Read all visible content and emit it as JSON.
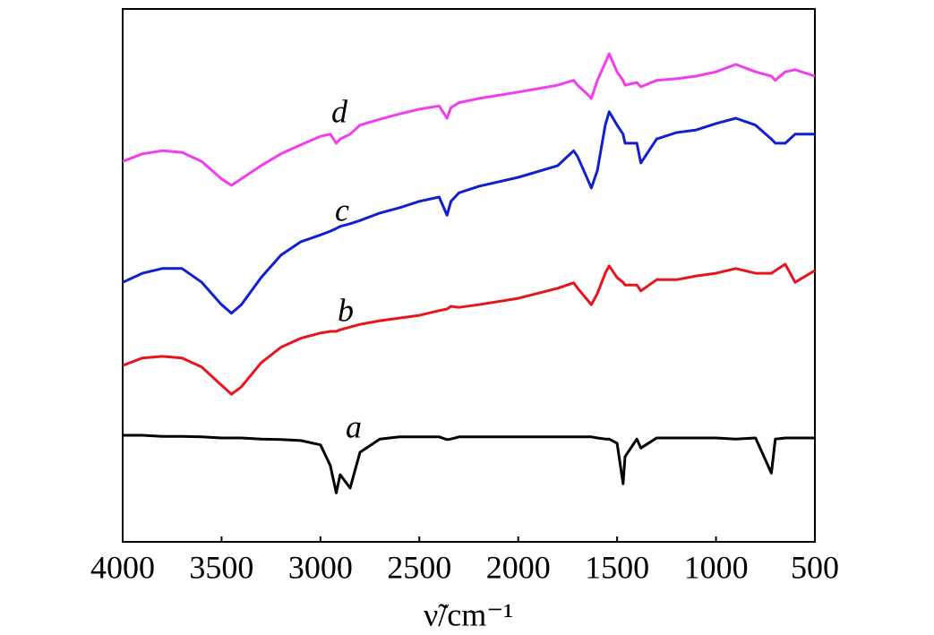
{
  "chart_data": {
    "type": "line",
    "xlabel": "ν̃/cm⁻¹",
    "xlim": [
      4000,
      500
    ],
    "xticks": [
      4000,
      3500,
      3000,
      2500,
      2000,
      1500,
      1000,
      500
    ],
    "ylim": [
      0,
      100
    ],
    "x": [
      4000,
      3900,
      3800,
      3700,
      3600,
      3500,
      3450,
      3400,
      3300,
      3200,
      3100,
      3000,
      2950,
      2920,
      2900,
      2850,
      2800,
      2700,
      2600,
      2500,
      2400,
      2360,
      2340,
      2300,
      2200,
      2000,
      1800,
      1720,
      1700,
      1650,
      1630,
      1600,
      1560,
      1540,
      1500,
      1470,
      1460,
      1400,
      1380,
      1300,
      1200,
      1100,
      1000,
      900,
      800,
      720,
      700,
      650,
      600,
      500
    ],
    "series": [
      {
        "name": "a",
        "color": "#000000",
        "values": [
          20.0,
          20.0,
          19.8,
          19.8,
          19.7,
          19.5,
          19.5,
          19.5,
          19.3,
          19.2,
          19.0,
          18.2,
          14.3,
          9.2,
          12.6,
          10.1,
          16.8,
          19.3,
          19.7,
          19.7,
          19.7,
          19.2,
          19.3,
          19.7,
          19.7,
          19.7,
          19.7,
          19.7,
          19.7,
          19.7,
          19.7,
          19.5,
          19.3,
          19.3,
          18.5,
          10.9,
          16.0,
          19.3,
          17.6,
          19.5,
          19.5,
          19.5,
          19.5,
          19.3,
          19.5,
          12.9,
          19.3,
          19.5,
          19.5,
          19.5
        ]
      },
      {
        "name": "b",
        "color": "#e8141b",
        "values": [
          33.1,
          34.5,
          34.8,
          34.5,
          32.8,
          29.4,
          27.7,
          29.1,
          33.6,
          36.5,
          38.2,
          39.2,
          39.5,
          39.5,
          39.8,
          40.3,
          40.8,
          41.5,
          42.0,
          42.5,
          43.4,
          43.7,
          44.2,
          44.0,
          44.5,
          45.7,
          47.6,
          48.6,
          47.6,
          45.4,
          44.5,
          46.6,
          50.4,
          51.8,
          49.6,
          48.7,
          48.2,
          48.2,
          47.1,
          49.2,
          49.2,
          49.9,
          50.4,
          51.3,
          50.4,
          50.4,
          50.9,
          52.1,
          48.7,
          50.9
        ]
      },
      {
        "name": "c",
        "color": "#1020d0",
        "values": [
          48.7,
          50.4,
          51.3,
          51.3,
          48.7,
          44.5,
          42.9,
          44.5,
          49.6,
          53.8,
          56.3,
          57.6,
          58.3,
          58.8,
          59.2,
          59.7,
          60.3,
          61.7,
          62.7,
          63.9,
          64.7,
          61.3,
          63.9,
          65.5,
          66.7,
          68.4,
          70.6,
          73.4,
          72.3,
          68.1,
          66.4,
          69.7,
          78.2,
          80.7,
          78.2,
          76.5,
          74.8,
          74.8,
          71.1,
          75.6,
          76.8,
          77.3,
          78.5,
          79.5,
          78.2,
          75.6,
          74.8,
          74.8,
          76.5,
          76.5
        ]
      },
      {
        "name": "d",
        "color": "#f23cf0",
        "values": [
          71.4,
          72.8,
          73.4,
          73.1,
          71.4,
          68.1,
          66.9,
          68.1,
          70.6,
          72.8,
          74.5,
          76.1,
          76.5,
          74.8,
          75.6,
          76.5,
          78.2,
          79.3,
          80.3,
          81.2,
          81.8,
          79.5,
          81.5,
          82.4,
          83.2,
          84.4,
          85.7,
          86.6,
          85.7,
          84.0,
          83.2,
          86.6,
          89.9,
          91.6,
          88.2,
          86.6,
          85.7,
          86.2,
          85.4,
          86.6,
          86.9,
          87.4,
          88.2,
          89.6,
          88.2,
          87.4,
          86.6,
          88.2,
          88.6,
          87.4
        ]
      }
    ]
  }
}
